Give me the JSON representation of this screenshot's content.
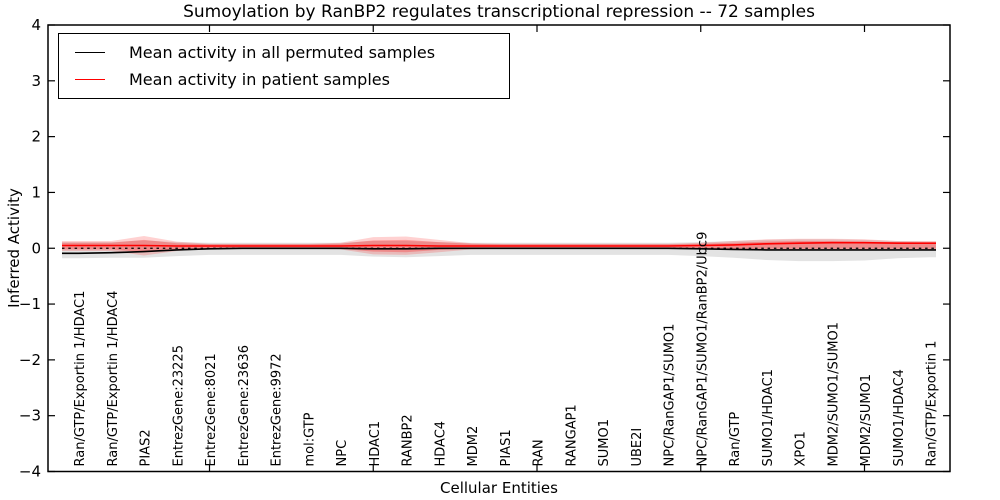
{
  "chart_data": {
    "type": "line",
    "title": "Sumoylation by RanBP2 regulates transcriptional repression -- 72 samples",
    "xlabel": "Cellular Entities",
    "ylabel": "Inferred Activity",
    "ylim": [
      -4,
      4
    ],
    "yticks": [
      4,
      3,
      2,
      1,
      0,
      -1,
      -2,
      -3,
      -4
    ],
    "xtick_indices": [
      4,
      9,
      14,
      19,
      24
    ],
    "grid": false,
    "legend_position": "upper-left",
    "categories": [
      "Ran/GTP/Exportin 1/HDAC1",
      "Ran/GTP/Exportin 1/HDAC4",
      "PIAS2",
      "EntrezGene:23225",
      "EntrezGene:8021",
      "EntrezGene:23636",
      "EntrezGene:9972",
      "mol:GTP",
      "NPC",
      "HDAC1",
      "RANBP2",
      "HDAC4",
      "MDM2",
      "PIAS1",
      "RAN",
      "RANGAP1",
      "SUMO1",
      "UBE2I",
      "NPC/RanGAP1/SUMO1",
      "NPC/RanGAP1/SUMO1/RanBP2/Ubc9",
      "Ran/GTP",
      "SUMO1/HDAC1",
      "XPO1",
      "MDM2/SUMO1/SUMO1",
      "MDM2/SUMO1",
      "SUMO1/HDAC4",
      "Ran/GTP/Exportin 1"
    ],
    "legend": [
      {
        "label": "Mean activity in all permuted samples",
        "color": "#000000"
      },
      {
        "label": "Mean activity in patient samples",
        "color": "#ff0000"
      }
    ],
    "zero_line": {
      "value": 0,
      "style": "dashed",
      "color": "#000000"
    },
    "series": [
      {
        "name": "Mean activity in all permuted samples",
        "color": "#000000",
        "values": [
          -0.09,
          -0.08,
          -0.06,
          -0.03,
          -0.01,
          0,
          0,
          0,
          0,
          -0.01,
          -0.01,
          0,
          0,
          0,
          0,
          0,
          0,
          0,
          0,
          -0.01,
          -0.02,
          -0.03,
          -0.03,
          -0.03,
          -0.03,
          -0.03,
          -0.03
        ]
      },
      {
        "name": "Mean activity in patient samples",
        "color": "#ff0000",
        "values": [
          0.05,
          0.05,
          0.05,
          0.04,
          0.04,
          0.04,
          0.04,
          0.04,
          0.04,
          0.05,
          0.05,
          0.04,
          0.04,
          0.04,
          0.04,
          0.04,
          0.04,
          0.04,
          0.04,
          0.05,
          0.06,
          0.08,
          0.09,
          0.1,
          0.1,
          0.09,
          0.09
        ]
      }
    ],
    "bands": [
      {
        "name": "permuted-samples-range",
        "color": "#000000",
        "opacity": 0.11,
        "upper": [
          0.11,
          0.11,
          0.14,
          0.11,
          0.1,
          0.1,
          0.1,
          0.1,
          0.1,
          0.13,
          0.13,
          0.11,
          0.1,
          0.1,
          0.1,
          0.1,
          0.1,
          0.1,
          0.1,
          0.11,
          0.13,
          0.15,
          0.16,
          0.16,
          0.15,
          0.13,
          0.12
        ],
        "lower": [
          -0.18,
          -0.17,
          -0.17,
          -0.14,
          -0.12,
          -0.12,
          -0.12,
          -0.12,
          -0.12,
          -0.15,
          -0.16,
          -0.14,
          -0.12,
          -0.12,
          -0.12,
          -0.12,
          -0.12,
          -0.12,
          -0.12,
          -0.14,
          -0.17,
          -0.21,
          -0.23,
          -0.23,
          -0.22,
          -0.18,
          -0.16
        ]
      },
      {
        "name": "patient-samples-range-outer",
        "color": "#ff0000",
        "opacity": 0.18,
        "upper": [
          0.13,
          0.13,
          0.22,
          0.12,
          0.08,
          0.08,
          0.08,
          0.08,
          0.1,
          0.2,
          0.21,
          0.15,
          0.09,
          0.08,
          0.08,
          0.08,
          0.08,
          0.08,
          0.08,
          0.1,
          0.13,
          0.16,
          0.17,
          0.17,
          0.16,
          0.13,
          0.13
        ],
        "lower": [
          -0.05,
          -0.05,
          -0.13,
          -0.05,
          -0.01,
          -0.01,
          -0.01,
          -0.01,
          -0.02,
          -0.11,
          -0.12,
          -0.07,
          -0.02,
          -0.01,
          -0.01,
          -0.01,
          -0.01,
          -0.01,
          -0.01,
          -0.02,
          -0.02,
          -0.02,
          -0.02,
          -0.02,
          -0.02,
          -0.02,
          -0.02
        ]
      },
      {
        "name": "patient-samples-range-inner",
        "color": "#ff0000",
        "opacity": 0.25,
        "upper": [
          0.1,
          0.1,
          0.15,
          0.09,
          0.07,
          0.07,
          0.07,
          0.07,
          0.08,
          0.14,
          0.15,
          0.11,
          0.08,
          0.07,
          0.07,
          0.07,
          0.07,
          0.07,
          0.07,
          0.08,
          0.1,
          0.12,
          0.13,
          0.13,
          0.12,
          0.11,
          0.1
        ],
        "lower": [
          -0.02,
          -0.02,
          -0.07,
          -0.02,
          -0.01,
          -0.01,
          -0.01,
          -0.01,
          -0.01,
          -0.06,
          -0.07,
          -0.03,
          -0.01,
          -0.01,
          -0.01,
          -0.01,
          -0.01,
          -0.01,
          -0.01,
          -0.01,
          -0.01,
          -0.01,
          -0.01,
          -0.01,
          -0.01,
          -0.01,
          -0.01
        ]
      }
    ]
  }
}
